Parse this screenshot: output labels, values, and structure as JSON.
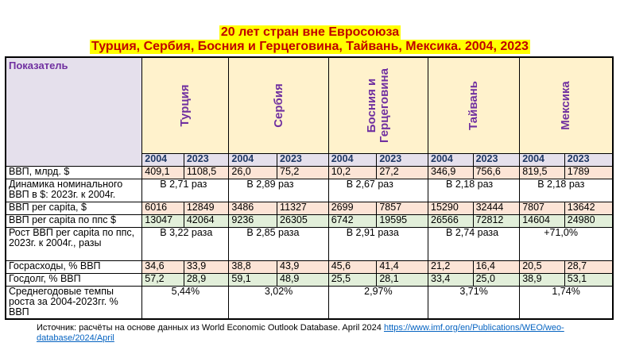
{
  "title": {
    "line1": "20 лет стран вне Евросоюза",
    "line2": "Турция, Сербия, Босния и Герцеговина, Тайвань, Мексика. 2004, 2023"
  },
  "header": {
    "indicator": "Показатель",
    "countries": [
      "Турция",
      "Сербия",
      "Босния и Герцеговина",
      "Тайвань",
      "Мексика"
    ],
    "bosnia_line1": "Босния и",
    "bosnia_line2": "Герцеговина",
    "year_a": "2004",
    "year_b": "2023"
  },
  "rows": {
    "gdp": {
      "label": "ВВП, млрд. $",
      "values": [
        "409,1",
        "1108,5",
        "26,0",
        "75,2",
        "10,2",
        "27,2",
        "346,9",
        "756,6",
        "819,5",
        "1789"
      ]
    },
    "dyn": {
      "label": "Динамика номинального ВВП в $: 2023г. к 2004г.",
      "values": [
        "В 2,71 раз",
        "В 2,89 раз",
        "В 2,67 раз",
        "В 2,18 раз",
        "В 2,18 раз"
      ]
    },
    "pc": {
      "label": "ВВП per capita, $",
      "values": [
        "6016",
        "12849",
        "3486",
        "11327",
        "2699",
        "7857",
        "15290",
        "32444",
        "7807",
        "13642"
      ]
    },
    "ppp": {
      "label": "ВВП per capita по ппс $",
      "values": [
        "13047",
        "42064",
        "9236",
        "26305",
        "6742",
        "19595",
        "26566",
        "72812",
        "14604",
        "24980"
      ]
    },
    "growth": {
      "label": "Рост ВВП per capita по ппс, 2023г. к 2004г., разы",
      "values": [
        "В 3,22 раза",
        "В 2,85 раза",
        "В 2,91 раза",
        "В 2,74 раза",
        "+71,0%"
      ]
    },
    "gov": {
      "label": "Госрасходы, % ВВП",
      "values": [
        "34,6",
        "33,9",
        "38,8",
        "43,9",
        "45,6",
        "41,4",
        "21,2",
        "16,4",
        "20,5",
        "28,7"
      ]
    },
    "debt": {
      "label": "Госдолг, % ВВП",
      "values": [
        "57,2",
        "28,9",
        "59,1",
        "48,9",
        "25,5",
        "28,1",
        "33,4",
        "25,0",
        "38,9",
        "53,1"
      ]
    },
    "avg": {
      "label": "Среднегодовые темпы роста за 2004-2023гг. % ВВП",
      "values": [
        "5,44%",
        "3,02%",
        "2,97%",
        "3,71%",
        "1,74%"
      ]
    }
  },
  "source": {
    "text": "Источник: расчёты на основе данных из World Economic Outlook Database. April 2024 ",
    "link": "https://www.imf.org/en/Publications/WEO/weo-database/2024/April"
  }
}
